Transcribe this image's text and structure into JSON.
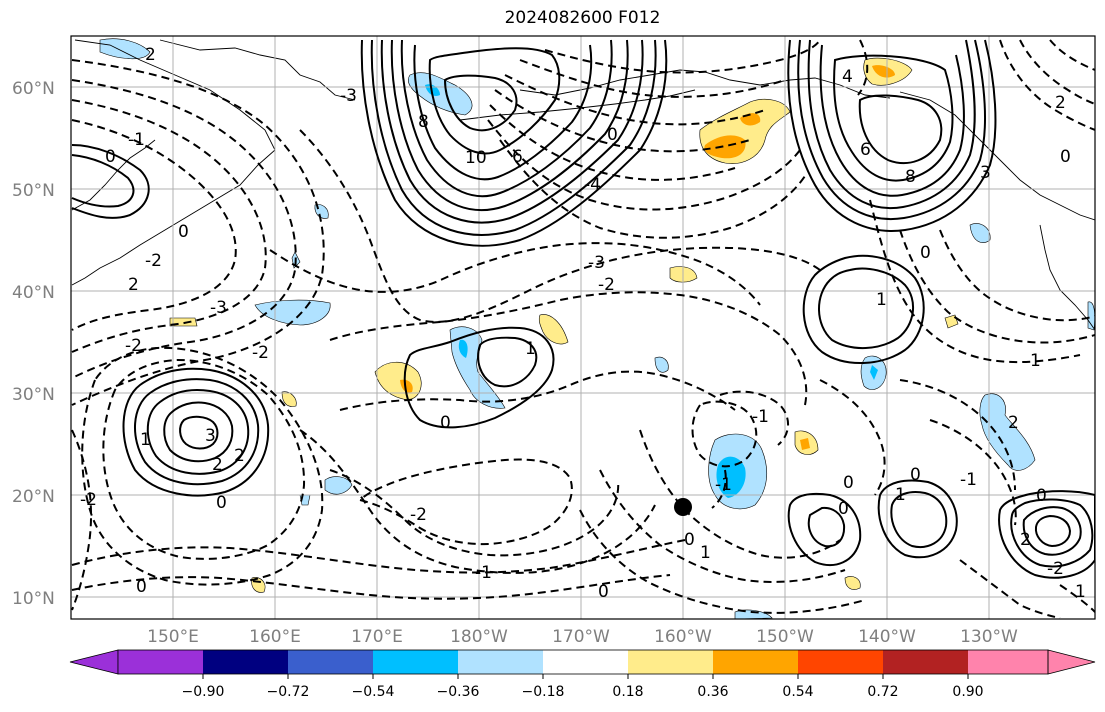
{
  "title": "2024082600 F012",
  "map": {
    "lat_labels": [
      "60°N",
      "50°N",
      "40°N",
      "30°N",
      "20°N",
      "10°N"
    ],
    "lon_labels": [
      "150°E",
      "160°E",
      "170°E",
      "180°W",
      "170°W",
      "160°W",
      "150°W",
      "140°W",
      "130°W"
    ],
    "contour_labels": [
      "2",
      "0",
      "-1",
      "0",
      "-2",
      "-3",
      "2",
      "-2",
      "-2",
      "1",
      "3",
      "2",
      "2",
      "0",
      "-2",
      "-3",
      "8",
      "10",
      "6",
      "0",
      "-4",
      "-3",
      "-2",
      "6",
      "8",
      "4",
      "3",
      "2",
      "0",
      "1",
      "1",
      "0",
      "-2",
      "-1",
      "0",
      "0",
      "-1",
      "1",
      "-1",
      "0",
      "0",
      "0",
      "0",
      "1",
      "2",
      "0",
      "1",
      "2",
      "-2",
      "-1",
      "0",
      "1"
    ],
    "storm_marker": "tropical-cyclone-position"
  },
  "colorbar": {
    "tick_labels": [
      "−0.90",
      "−0.72",
      "−0.54",
      "−0.36",
      "−0.18",
      "0.18",
      "0.36",
      "0.54",
      "0.72",
      "0.90"
    ],
    "colors": [
      "#9b30d9",
      "#000080",
      "#3a5fcd",
      "#00bfff",
      "#b0e2ff",
      "#ffffff",
      "#ffec8b",
      "#ffa500",
      "#ff4500",
      "#b22222",
      "#ff83ac"
    ]
  },
  "shading_colors": {
    "neg_light": "#b0e2ff",
    "neg_mid": "#00bfff",
    "pos_light": "#ffec8b",
    "pos_mid": "#ffa500"
  }
}
